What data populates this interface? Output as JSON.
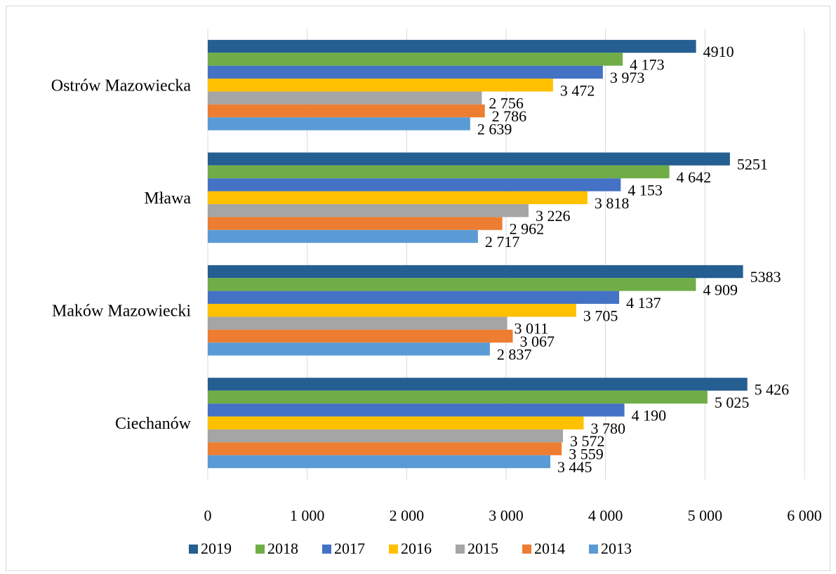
{
  "chart_data": {
    "type": "bar",
    "orientation": "horizontal",
    "title": "",
    "xlabel": "",
    "ylabel": "",
    "xlim": [
      0,
      6000
    ],
    "x_ticks": [
      "0",
      "1 000",
      "2 000",
      "3 000",
      "4 000",
      "5 000",
      "6 000"
    ],
    "grid": "vertical",
    "legend_position": "bottom",
    "categories": [
      "Ostrów Mazowiecka",
      "Mława",
      "Maków Mazowiecki",
      "Ciechanów"
    ],
    "series": [
      {
        "name": "2019",
        "color": "#255e91",
        "values": [
          4910,
          5251,
          5383,
          5426
        ],
        "labels": [
          "4910",
          "5251",
          "5383",
          "5 426"
        ]
      },
      {
        "name": "2018",
        "color": "#70ad47",
        "values": [
          4173,
          4642,
          4909,
          5025
        ],
        "labels": [
          "4 173",
          "4 642",
          "4 909",
          "5 025"
        ]
      },
      {
        "name": "2017",
        "color": "#4472c4",
        "values": [
          3973,
          4153,
          4137,
          4190
        ],
        "labels": [
          "3 973",
          "4 153",
          "4 137",
          "4 190"
        ]
      },
      {
        "name": "2016",
        "color": "#ffc000",
        "values": [
          3472,
          3818,
          3705,
          3780
        ],
        "labels": [
          "3 472",
          "3 818",
          "3 705",
          "3 780"
        ]
      },
      {
        "name": "2015",
        "color": "#a5a5a5",
        "values": [
          2756,
          3226,
          3011,
          3572
        ],
        "labels": [
          "2 756",
          "3 226",
          "3 011",
          "3 572"
        ]
      },
      {
        "name": "2014",
        "color": "#ed7d31",
        "values": [
          2786,
          2962,
          3067,
          3559
        ],
        "labels": [
          "2 786",
          "2 962",
          "3 067",
          "3 559"
        ]
      },
      {
        "name": "2013",
        "color": "#5b9bd5",
        "values": [
          2639,
          2717,
          2837,
          3445
        ],
        "labels": [
          "2 639",
          "2 717",
          "2 837",
          "3 445"
        ]
      }
    ]
  }
}
